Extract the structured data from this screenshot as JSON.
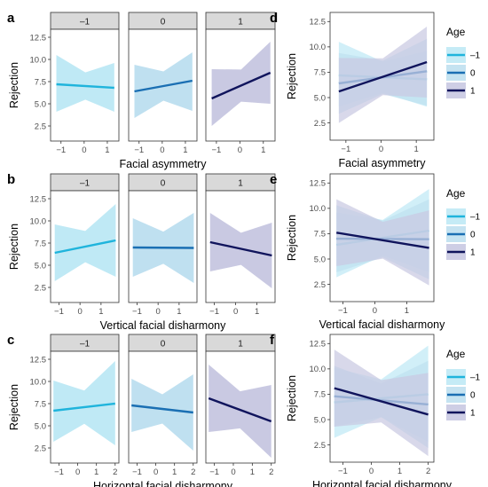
{
  "legend": {
    "title": "Age",
    "levels": [
      "–1",
      "0",
      "1"
    ]
  },
  "colors": {
    "–1": "#1fb4dc",
    "0": "#1a6fb3",
    "1": "#10145c"
  },
  "ribbon_colors": {
    "–1": "#bfe9f5",
    "0": "#bfe0f0",
    "1": "#c9c9e2"
  },
  "strip_fill": "#d9d9d9",
  "rows": [
    {
      "id": "asym",
      "xlabel": "Facial asymmetry",
      "ylabel": "Rejection",
      "xlim": [
        -1.45,
        1.5
      ],
      "xticks": [
        -1,
        0,
        1
      ],
      "xtick_labels": [
        "−1",
        "0",
        "1"
      ],
      "faceted_letter": "a",
      "combined_letter": "d"
    },
    {
      "id": "vert",
      "xlabel": "Vertical facial disharmony",
      "ylabel": "Rejection",
      "xlim": [
        -1.4,
        1.85
      ],
      "xticks": [
        -1,
        0,
        1
      ],
      "xtick_labels": [
        "−1",
        "0",
        "1"
      ],
      "faceted_letter": "b",
      "combined_letter": "e"
    },
    {
      "id": "horiz",
      "xlabel": "Horizontal facial disharmony",
      "ylabel": "Rejection",
      "xlim": [
        -1.45,
        2.2
      ],
      "xticks": [
        -1,
        0,
        1,
        2
      ],
      "xtick_labels": [
        "−1",
        "0",
        "1",
        "2"
      ],
      "faceted_letter": "c",
      "combined_letter": "f"
    }
  ],
  "chart_data": [
    {
      "panel": "a",
      "type": "line",
      "facets": [
        "–1",
        "0",
        "1"
      ],
      "xlabel": "Facial asymmetry",
      "ylabel": "Rejection",
      "ylim": [
        0.8,
        13.4
      ],
      "yticks": [
        2.5,
        5.0,
        7.5,
        10.0,
        12.5
      ],
      "series": [
        {
          "name": "–1",
          "x": [
            -1.2,
            1.3
          ],
          "y": [
            7.2,
            6.8
          ],
          "lower": [
            4.1,
            4.1
          ],
          "upper": [
            10.5,
            9.6
          ]
        },
        {
          "name": "0",
          "x": [
            -1.2,
            1.3
          ],
          "y": [
            6.4,
            7.6
          ],
          "lower": [
            3.4,
            4.2
          ],
          "upper": [
            9.4,
            10.8
          ]
        },
        {
          "name": "1",
          "x": [
            -1.2,
            1.3
          ],
          "y": [
            5.6,
            8.5
          ],
          "lower": [
            2.5,
            5.0
          ],
          "upper": [
            8.9,
            12.0
          ]
        }
      ]
    },
    {
      "panel": "b",
      "type": "line",
      "facets": [
        "–1",
        "0",
        "1"
      ],
      "xlabel": "Vertical facial disharmony",
      "ylabel": "Rejection",
      "ylim": [
        0.8,
        13.4
      ],
      "yticks": [
        2.5,
        5.0,
        7.5,
        10.0,
        12.5
      ],
      "series": [
        {
          "name": "–1",
          "x": [
            -1.2,
            1.7
          ],
          "y": [
            6.4,
            7.8
          ],
          "lower": [
            3.2,
            3.7
          ],
          "upper": [
            9.6,
            11.9
          ]
        },
        {
          "name": "0",
          "x": [
            -1.2,
            1.7
          ],
          "y": [
            7.0,
            6.95
          ],
          "lower": [
            3.7,
            3.0
          ],
          "upper": [
            10.3,
            10.9
          ]
        },
        {
          "name": "1",
          "x": [
            -1.2,
            1.7
          ],
          "y": [
            7.6,
            6.1
          ],
          "lower": [
            4.3,
            2.4
          ],
          "upper": [
            10.9,
            9.8
          ]
        }
      ]
    },
    {
      "panel": "c",
      "type": "line",
      "facets": [
        "–1",
        "0",
        "1"
      ],
      "xlabel": "Horizontal facial disharmony",
      "ylabel": "Rejection",
      "ylim": [
        0.8,
        13.4
      ],
      "yticks": [
        2.5,
        5.0,
        7.5,
        10.0,
        12.5
      ],
      "series": [
        {
          "name": "–1",
          "x": [
            -1.3,
            2.0
          ],
          "y": [
            6.7,
            7.5
          ],
          "lower": [
            3.2,
            2.8
          ],
          "upper": [
            10.1,
            12.3
          ]
        },
        {
          "name": "0",
          "x": [
            -1.3,
            2.0
          ],
          "y": [
            7.3,
            6.5
          ],
          "lower": [
            4.3,
            2.2
          ],
          "upper": [
            10.3,
            10.8
          ]
        },
        {
          "name": "1",
          "x": [
            -1.3,
            2.0
          ],
          "y": [
            8.1,
            5.5
          ],
          "lower": [
            4.3,
            1.4
          ],
          "upper": [
            11.9,
            9.6
          ]
        }
      ]
    },
    {
      "panel": "d",
      "type": "line",
      "legend": "right",
      "xlabel": "Facial asymmetry",
      "ylabel": "Rejection",
      "ylim": [
        0.8,
        13.4
      ],
      "yticks": [
        2.5,
        5.0,
        7.5,
        10.0,
        12.5
      ],
      "series": [
        {
          "name": "–1",
          "x": [
            -1.2,
            1.3
          ],
          "y": [
            7.2,
            6.8
          ],
          "lower": [
            4.1,
            4.1
          ],
          "upper": [
            10.5,
            9.6
          ]
        },
        {
          "name": "0",
          "x": [
            -1.2,
            1.3
          ],
          "y": [
            6.4,
            7.6
          ],
          "lower": [
            3.4,
            4.2
          ],
          "upper": [
            9.4,
            10.8
          ]
        },
        {
          "name": "1",
          "x": [
            -1.2,
            1.3
          ],
          "y": [
            5.6,
            8.5
          ],
          "lower": [
            2.5,
            5.0
          ],
          "upper": [
            8.9,
            12.0
          ]
        }
      ]
    },
    {
      "panel": "e",
      "type": "line",
      "legend": "right",
      "xlabel": "Vertical facial disharmony",
      "ylabel": "Rejection",
      "ylim": [
        0.8,
        13.4
      ],
      "yticks": [
        2.5,
        5.0,
        7.5,
        10.0,
        12.5
      ],
      "series": [
        {
          "name": "–1",
          "x": [
            -1.2,
            1.7
          ],
          "y": [
            6.4,
            7.8
          ],
          "lower": [
            3.2,
            3.7
          ],
          "upper": [
            9.6,
            11.9
          ]
        },
        {
          "name": "0",
          "x": [
            -1.2,
            1.7
          ],
          "y": [
            7.0,
            6.95
          ],
          "lower": [
            3.7,
            3.0
          ],
          "upper": [
            10.3,
            10.9
          ]
        },
        {
          "name": "1",
          "x": [
            -1.2,
            1.7
          ],
          "y": [
            7.6,
            6.1
          ],
          "lower": [
            4.3,
            2.4
          ],
          "upper": [
            10.9,
            9.8
          ]
        }
      ]
    },
    {
      "panel": "f",
      "type": "line",
      "legend": "right",
      "xlabel": "Horizontal facial disharmony",
      "ylabel": "Rejection",
      "ylim": [
        0.8,
        13.4
      ],
      "yticks": [
        2.5,
        5.0,
        7.5,
        10.0,
        12.5
      ],
      "series": [
        {
          "name": "–1",
          "x": [
            -1.3,
            2.0
          ],
          "y": [
            6.7,
            7.5
          ],
          "lower": [
            3.2,
            2.8
          ],
          "upper": [
            10.1,
            12.3
          ]
        },
        {
          "name": "0",
          "x": [
            -1.3,
            2.0
          ],
          "y": [
            7.3,
            6.5
          ],
          "lower": [
            4.3,
            2.2
          ],
          "upper": [
            10.3,
            10.8
          ]
        },
        {
          "name": "1",
          "x": [
            -1.3,
            2.0
          ],
          "y": [
            8.1,
            5.5
          ],
          "lower": [
            4.3,
            1.4
          ],
          "upper": [
            11.9,
            9.6
          ]
        }
      ]
    }
  ]
}
